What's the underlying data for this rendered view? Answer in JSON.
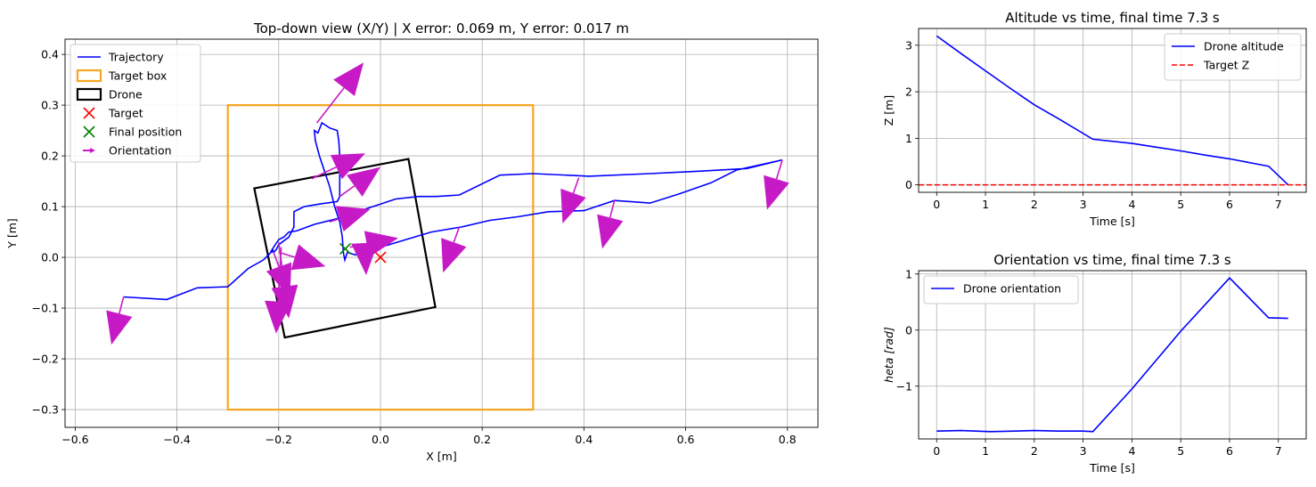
{
  "chart_data": [
    {
      "type": "scatter",
      "title": "Top-down view (X/Y) | X error: 0.069 m, Y error: 0.017 m",
      "xlabel": "X [m]",
      "ylabel": "Y [m]",
      "xlim": [
        -0.62,
        0.86
      ],
      "ylim": [
        -0.335,
        0.43
      ],
      "xticks": [
        -0.6,
        -0.4,
        -0.2,
        0.0,
        0.2,
        0.4,
        0.6,
        0.8
      ],
      "xtick_labels": [
        "−0.6",
        "−0.4",
        "−0.2",
        "0.0",
        "0.2",
        "0.4",
        "0.6",
        "0.8"
      ],
      "yticks": [
        -0.3,
        -0.2,
        -0.1,
        0.0,
        0.1,
        0.2,
        0.3,
        0.4
      ],
      "ytick_labels": [
        "−0.3",
        "−0.2",
        "−0.1",
        "0.0",
        "0.1",
        "0.2",
        "0.3",
        "0.4"
      ],
      "grid": true,
      "legend_position": "top-left",
      "legend": [
        "Trajectory",
        "Target box",
        "Drone",
        "Target",
        "Final position",
        "Orientation"
      ],
      "colors": {
        "trajectory": "#0000ff",
        "target_box": "#f5a623",
        "drone": "#000000",
        "target": "#ff0000",
        "final": "#008000",
        "orientation": "#c71ac7"
      },
      "trajectory": [
        [
          0.79,
          0.192
        ],
        [
          0.72,
          0.175
        ],
        [
          0.63,
          0.17
        ],
        [
          0.53,
          0.165
        ],
        [
          0.41,
          0.16
        ],
        [
          0.3,
          0.165
        ],
        [
          0.235,
          0.162
        ],
        [
          0.155,
          0.123
        ],
        [
          0.11,
          0.12
        ],
        [
          0.075,
          0.12
        ],
        [
          0.03,
          0.115
        ],
        [
          0.0,
          0.105
        ],
        [
          -0.03,
          0.095
        ],
        [
          -0.07,
          0.08
        ],
        [
          -0.13,
          0.065
        ],
        [
          -0.165,
          0.052
        ],
        [
          -0.18,
          0.05
        ],
        [
          -0.19,
          0.04
        ],
        [
          -0.2,
          0.035
        ],
        [
          -0.21,
          0.02
        ],
        [
          -0.215,
          0.012
        ],
        [
          -0.21,
          0.01
        ],
        [
          -0.205,
          0.015
        ],
        [
          -0.2,
          0.025
        ],
        [
          -0.18,
          0.04
        ],
        [
          -0.17,
          0.06
        ],
        [
          -0.17,
          0.078
        ],
        [
          -0.17,
          0.09
        ],
        [
          -0.15,
          0.1
        ],
        [
          -0.12,
          0.105
        ],
        [
          -0.085,
          0.11
        ],
        [
          -0.08,
          0.12
        ],
        [
          -0.08,
          0.16
        ],
        [
          -0.08,
          0.2
        ],
        [
          -0.082,
          0.23
        ],
        [
          -0.085,
          0.25
        ],
        [
          -0.1,
          0.255
        ],
        [
          -0.115,
          0.265
        ],
        [
          -0.123,
          0.245
        ],
        [
          -0.13,
          0.25
        ],
        [
          -0.128,
          0.23
        ],
        [
          -0.12,
          0.2
        ],
        [
          -0.11,
          0.17
        ],
        [
          -0.1,
          0.14
        ],
        [
          -0.09,
          0.1
        ],
        [
          -0.08,
          0.07
        ],
        [
          -0.075,
          0.04
        ],
        [
          -0.073,
          0.01
        ],
        [
          -0.07,
          -0.005
        ],
        [
          -0.065,
          0.01
        ],
        [
          -0.05,
          0.005
        ],
        [
          -0.03,
          0.008
        ],
        [
          0.0,
          0.02
        ],
        [
          0.05,
          0.035
        ],
        [
          0.1,
          0.05
        ],
        [
          0.16,
          0.06
        ],
        [
          0.215,
          0.073
        ],
        [
          0.27,
          0.08
        ],
        [
          0.33,
          0.09
        ],
        [
          0.4,
          0.092
        ],
        [
          0.46,
          0.112
        ],
        [
          0.53,
          0.107
        ],
        [
          0.59,
          0.126
        ],
        [
          0.65,
          0.147
        ],
        [
          0.7,
          0.172
        ],
        [
          0.79,
          0.192
        ]
      ],
      "trajectory_tail": [
        [
          -0.21,
          0.015
        ],
        [
          -0.23,
          -0.005
        ],
        [
          -0.26,
          -0.022
        ],
        [
          -0.3,
          -0.058
        ],
        [
          -0.36,
          -0.06
        ],
        [
          -0.42,
          -0.083
        ],
        [
          -0.505,
          -0.078
        ]
      ],
      "target_box": [
        [
          -0.3,
          -0.3
        ],
        [
          0.3,
          -0.3
        ],
        [
          0.3,
          0.3
        ],
        [
          -0.3,
          0.3
        ]
      ],
      "drone": [
        [
          -0.248,
          0.136
        ],
        [
          0.055,
          0.194
        ],
        [
          0.108,
          -0.098
        ],
        [
          -0.188,
          -0.158
        ]
      ],
      "target": [
        0.0,
        0.0
      ],
      "final_position": [
        -0.069,
        0.017
      ],
      "orientation_arrows": [
        [
          0.79,
          0.192,
          0.76,
          0.094
        ],
        [
          0.39,
          0.157,
          0.358,
          0.067
        ],
        [
          0.46,
          0.112,
          0.436,
          0.017
        ],
        [
          0.155,
          0.06,
          0.123,
          -0.03
        ],
        [
          -0.505,
          -0.078,
          -0.529,
          -0.172
        ],
        [
          -0.125,
          0.265,
          -0.033,
          0.384
        ],
        [
          -0.135,
          0.155,
          -0.03,
          0.205
        ],
        [
          -0.08,
          0.12,
          0.0,
          0.178
        ],
        [
          -0.1,
          0.07,
          -0.02,
          0.095
        ],
        [
          -0.06,
          0.02,
          0.035,
          0.038
        ],
        [
          -0.03,
          0.005,
          -0.028,
          -0.035
        ],
        [
          -0.2,
          0.01,
          -0.108,
          -0.018
        ],
        [
          -0.21,
          0.01,
          -0.178,
          -0.078
        ],
        [
          -0.2,
          0.03,
          -0.18,
          -0.12
        ],
        [
          -0.195,
          0.02,
          -0.205,
          -0.15
        ]
      ]
    },
    {
      "type": "line",
      "title": "Altitude vs time, final time 7.3 s",
      "xlabel": "Time [s]",
      "ylabel": "Z [m]",
      "xlim": [
        -0.37,
        7.57
      ],
      "ylim": [
        -0.16,
        3.36
      ],
      "xticks": [
        0,
        1,
        2,
        3,
        4,
        5,
        6,
        7
      ],
      "xtick_labels": [
        "0",
        "1",
        "2",
        "3",
        "4",
        "5",
        "6",
        "7"
      ],
      "yticks": [
        0,
        1,
        2,
        3
      ],
      "ytick_labels": [
        "0",
        "1",
        "2",
        "3"
      ],
      "grid": true,
      "legend_position": "top-right",
      "series": [
        {
          "name": "Drone altitude",
          "color": "#0000ff",
          "style": "solid",
          "x": [
            0,
            0.5,
            1.0,
            1.5,
            2.0,
            2.5,
            3.2,
            4.0,
            4.5,
            5.0,
            5.5,
            6.0,
            6.5,
            6.8,
            7.2
          ],
          "y": [
            3.2,
            2.82,
            2.45,
            2.08,
            1.72,
            1.42,
            0.98,
            0.89,
            0.81,
            0.73,
            0.64,
            0.56,
            0.46,
            0.4,
            0.0
          ]
        },
        {
          "name": "Target Z",
          "color": "#ff0000",
          "style": "dashed",
          "x": [
            -0.37,
            7.57
          ],
          "y": [
            0,
            0
          ]
        }
      ]
    },
    {
      "type": "line",
      "title": "Orientation vs time, final time 7.3 s",
      "xlabel": "Time [s]",
      "ylabel": "$\theta$ [rad]",
      "ylabel_shown": "heta [rad]",
      "xlim": [
        -0.37,
        7.57
      ],
      "ylim": [
        -1.94,
        1.06
      ],
      "xticks": [
        0,
        1,
        2,
        3,
        4,
        5,
        6,
        7
      ],
      "xtick_labels": [
        "0",
        "1",
        "2",
        "3",
        "4",
        "5",
        "6",
        "7"
      ],
      "yticks": [
        -1,
        0,
        1
      ],
      "ytick_labels": [
        "−1",
        "0",
        "1"
      ],
      "grid": true,
      "legend_position": "top-left",
      "series": [
        {
          "name": "Drone orientation",
          "color": "#0000ff",
          "style": "solid",
          "x": [
            0,
            0.5,
            1.1,
            1.6,
            2.0,
            2.5,
            3.0,
            3.2,
            4.0,
            5.0,
            6.0,
            6.8,
            7.2
          ],
          "y": [
            -1.8,
            -1.79,
            -1.81,
            -1.8,
            -1.79,
            -1.8,
            -1.8,
            -1.81,
            -1.05,
            -0.02,
            0.93,
            0.22,
            0.21
          ]
        }
      ]
    }
  ]
}
